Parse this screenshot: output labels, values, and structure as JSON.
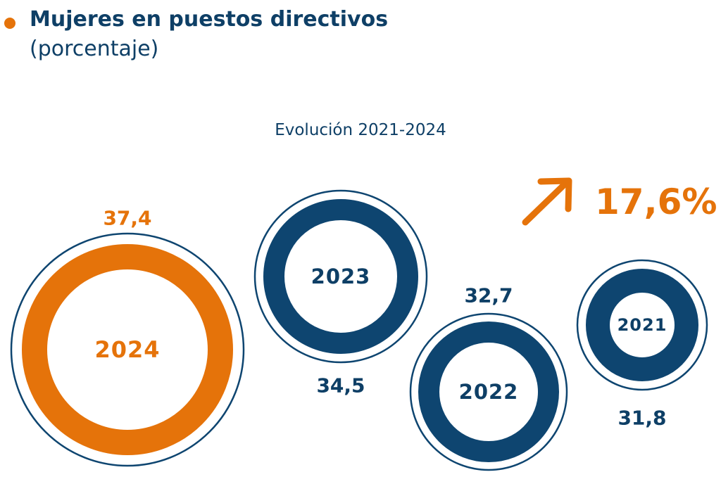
{
  "header": {
    "title": "Mujeres en puestos directivos",
    "subtitle": "(porcentaje)"
  },
  "chart_data": {
    "type": "bubble",
    "title": "Evolución 2021-2024",
    "series": [
      {
        "year": "2024",
        "value": 37.4,
        "value_label": "37,4",
        "highlight": true
      },
      {
        "year": "2023",
        "value": 34.5,
        "value_label": "34,5",
        "highlight": false
      },
      {
        "year": "2022",
        "value": 32.7,
        "value_label": "32,7",
        "highlight": false
      },
      {
        "year": "2021",
        "value": 31.8,
        "value_label": "31,8",
        "highlight": false
      }
    ],
    "growth": {
      "label": "17,6%",
      "icon": "arrow-up-right-icon"
    }
  },
  "colors": {
    "orange": "#E5730A",
    "navy": "#0E4570",
    "text_navy": "#0E3F66"
  }
}
